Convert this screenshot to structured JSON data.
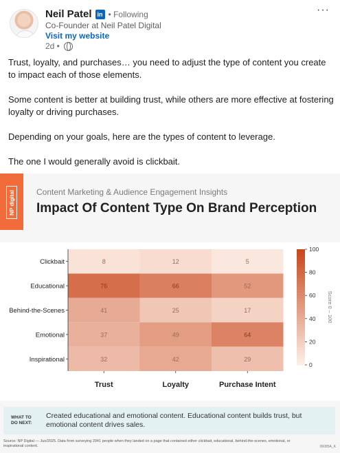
{
  "author": {
    "name": "Neil Patel",
    "badge": "in",
    "following": "• Following",
    "tagline": "Co-Founder at Neil Patel Digital",
    "website_link": "Visit my website",
    "posted": "2d •",
    "more": "···"
  },
  "post": {
    "paragraphs": [
      "Trust, loyalty, and purchases… you need to adjust the type of content you create to impact each of those elements.",
      "Some content is better at building trust, while others are more effective at fostering loyalty or driving purchases.",
      "Depending on your goals, here are the types of content to leverage.",
      "The one I would generally avoid is clickbait."
    ]
  },
  "infographic": {
    "brand": "NP digital",
    "subtitle": "Content Marketing & Audience Engagement Insights",
    "title": "Impact Of Content Type On Brand Perception",
    "what_to_do_label": "WHAT TO DO NEXT:",
    "what_to_do_text": "Created educational and emotional content. Educational content builds trust, but emotional content drives sales.",
    "source": "Source: NP Digital — Jun/2025. Data from surveying 2941 people when they landed on a page that contained either clickbait, educational, behind-the-scenes, emotional, or inspirational content.",
    "code": "06085A_K"
  },
  "chart_data": {
    "type": "heatmap",
    "rows": [
      "Clickbait",
      "Educational",
      "Behind-the-Scenes",
      "Emotional",
      "Inspirational"
    ],
    "columns": [
      "Trust",
      "Loyalty",
      "Purchase Intent"
    ],
    "values": [
      [
        8,
        12,
        5
      ],
      [
        76,
        66,
        52
      ],
      [
        41,
        25,
        17
      ],
      [
        37,
        49,
        64
      ],
      [
        32,
        42,
        29
      ]
    ],
    "colorbar": {
      "label": "Score 0 – 100",
      "ticks": [
        0,
        20,
        40,
        60,
        80,
        100
      ],
      "range": [
        0,
        100
      ]
    },
    "colors": {
      "low": "#fdf0e8",
      "high": "#c8461a"
    }
  }
}
